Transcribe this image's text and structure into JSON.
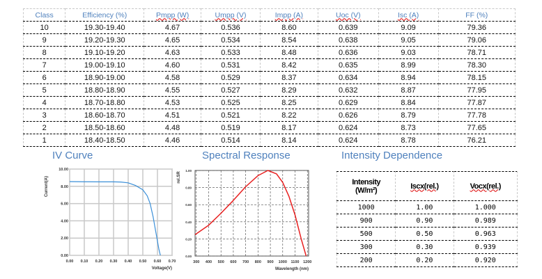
{
  "table": {
    "headers": [
      "Class",
      "Efficiency (%)",
      "Pmpp (W)",
      "Umpp (V)",
      "Impp (A)",
      "Uoc (V)",
      "Isc (A)",
      "FF (%)"
    ],
    "rows": [
      [
        "10",
        "19.30-19.40",
        "4.67",
        "0.536",
        "8.60",
        "0.639",
        "9.09",
        "79.36"
      ],
      [
        "9",
        "19.20-19.30",
        "4.65",
        "0.534",
        "8.54",
        "0.638",
        "9.05",
        "79.06"
      ],
      [
        "8",
        "19.10-19.20",
        "4.63",
        "0.533",
        "8.48",
        "0.636",
        "9.03",
        "78.71"
      ],
      [
        "7",
        "19.00-19.10",
        "4.60",
        "0.531",
        "8.42",
        "0.635",
        "8.99",
        "78.30"
      ],
      [
        "6",
        "18.90-19.00",
        "4.58",
        "0.529",
        "8.37",
        "0.634",
        "8.94",
        "78.15"
      ],
      [
        "5",
        "18.80-18.90",
        "4.55",
        "0.527",
        "8.29",
        "0.632",
        "8.87",
        "77.95"
      ],
      [
        "4",
        "18.70-18.80",
        "4.53",
        "0.525",
        "8.25",
        "0.629",
        "8.84",
        "77.87"
      ],
      [
        "3",
        "18.60-18.70",
        "4.51",
        "0.521",
        "8.22",
        "0.626",
        "8.79",
        "77.78"
      ],
      [
        "2",
        "18.50-18.60",
        "4.48",
        "0.519",
        "8.17",
        "0.624",
        "8.73",
        "77.65"
      ],
      [
        "1",
        "18.40-18.50",
        "4.46",
        "0.514",
        "8.14",
        "0.624",
        "8.78",
        "76.21"
      ]
    ]
  },
  "titles": {
    "iv": "IV   Curve",
    "spectral": "Spectral Response",
    "intensity": "Intensity Dependence"
  },
  "intensity": {
    "headers": [
      "Intensity",
      "(W/m²)",
      "Iscx(rel.)",
      "Vocx(rel.)"
    ],
    "rows": [
      [
        "1000",
        "1.00",
        "1.000"
      ],
      [
        "900",
        "0.90",
        "0.989"
      ],
      [
        "500",
        "0.50",
        "0.963"
      ],
      [
        "300",
        "0.30",
        "0.939"
      ],
      [
        "200",
        "0.20",
        "0.920"
      ]
    ]
  },
  "chart_data": [
    {
      "type": "line",
      "xlabel": "Voltage(V)",
      "ylabel": "Current(A)",
      "xlim": [
        0,
        0.7
      ],
      "ylim": [
        0,
        10
      ],
      "color": "#3a8fd8",
      "grid": true,
      "xticks": [
        "0.00",
        "0.10",
        "0.20",
        "0.30",
        "0.40",
        "0.50",
        "0.60",
        "0.70"
      ],
      "yticks": [
        "0.00",
        "2.00",
        "4.00",
        "6.00",
        "8.00",
        "10.00"
      ],
      "x": [
        0,
        0.1,
        0.2,
        0.3,
        0.35,
        0.4,
        0.45,
        0.5,
        0.53,
        0.55,
        0.57,
        0.59,
        0.61,
        0.62
      ],
      "y": [
        8.55,
        8.53,
        8.52,
        8.52,
        8.5,
        8.4,
        8.1,
        7.6,
        6.9,
        6.0,
        4.5,
        2.6,
        0.7,
        0
      ]
    },
    {
      "type": "line",
      "xlabel": "Wavelength (nm)",
      "ylabel": "rel.SR",
      "xlim": [
        290,
        1210
      ],
      "ylim": [
        0,
        1
      ],
      "color": "#e82020",
      "grid": true,
      "xticks": [
        "300",
        "400",
        "500",
        "600",
        "700",
        "800",
        "900",
        "1000",
        "1100",
        "1200"
      ],
      "yticks": [
        "0.00",
        "0.20",
        "0.40",
        "0.60",
        "0.80",
        "1.00"
      ],
      "x": [
        290,
        400,
        500,
        600,
        700,
        800,
        880,
        950,
        1000,
        1050,
        1100,
        1150,
        1190
      ],
      "y": [
        0.25,
        0.36,
        0.5,
        0.65,
        0.81,
        0.94,
        1.0,
        0.96,
        0.86,
        0.7,
        0.48,
        0.2,
        0.0
      ]
    }
  ]
}
